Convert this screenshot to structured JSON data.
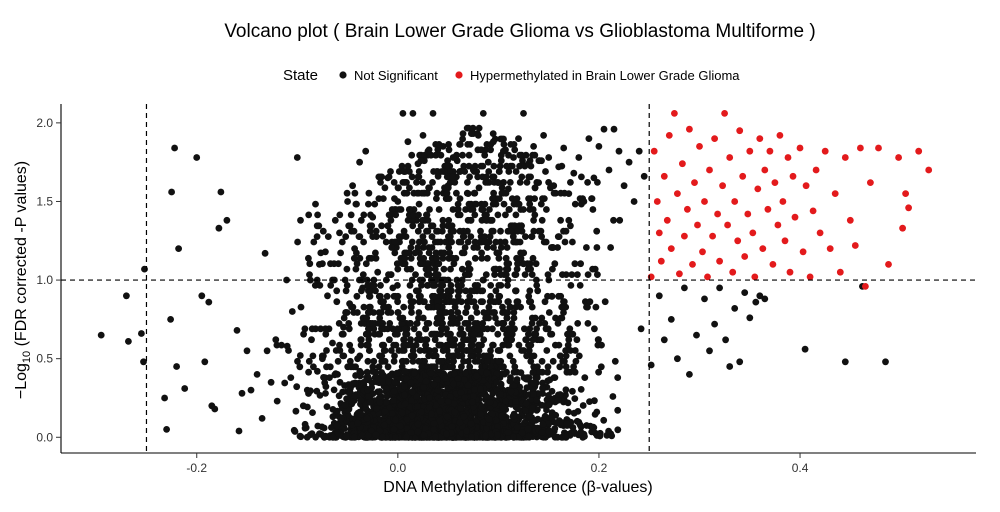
{
  "chart_data": {
    "type": "scatter",
    "title": "Volcano plot ( Brain Lower Grade Glioma vs Glioblastoma Multiforme )",
    "xlabel": "DNA Methylation difference (β-values)",
    "ylabel_prefix": "−Log",
    "ylabel_sub": "10",
    "ylabel_suffix": " (FDR corrected -P values)",
    "xlim": [
      -0.335,
      0.575
    ],
    "ylim": [
      -0.1,
      2.12
    ],
    "x_ticks": [
      -0.2,
      0.0,
      0.2,
      0.4
    ],
    "x_tick_labels": [
      "-0.2",
      "0.0",
      "0.2",
      "0.4"
    ],
    "y_ticks": [
      0.0,
      0.5,
      1.0,
      1.5,
      2.0
    ],
    "y_tick_labels": [
      "0.0",
      "0.5",
      "1.0",
      "1.5",
      "2.0"
    ],
    "grid": false,
    "legend_placement": "top",
    "legend_title": "State",
    "thresholds": {
      "x": [
        -0.25,
        0.25
      ],
      "y": 1.0
    },
    "series": [
      {
        "name": "Not Significant",
        "color": "#111111",
        "description_of_density": "dense cloud around x 0.0-0.15, y 0-0.5; columns thinning up to y 2.0",
        "points": [
          [
            -0.295,
            0.65
          ],
          [
            -0.27,
            0.9
          ],
          [
            -0.268,
            0.61
          ],
          [
            -0.255,
            0.66
          ],
          [
            -0.252,
            1.07
          ],
          [
            -0.253,
            0.48
          ],
          [
            -0.232,
            0.25
          ],
          [
            -0.23,
            0.05
          ],
          [
            -0.226,
            0.75
          ],
          [
            -0.225,
            1.56
          ],
          [
            -0.222,
            1.84
          ],
          [
            -0.22,
            0.45
          ],
          [
            -0.218,
            1.2
          ],
          [
            -0.212,
            0.31
          ],
          [
            -0.2,
            1.78
          ],
          [
            -0.195,
            0.9
          ],
          [
            -0.192,
            0.48
          ],
          [
            -0.188,
            0.86
          ],
          [
            -0.185,
            0.2
          ],
          [
            -0.182,
            0.18
          ],
          [
            -0.178,
            1.33
          ],
          [
            -0.176,
            1.56
          ],
          [
            -0.17,
            1.38
          ],
          [
            -0.16,
            0.68
          ],
          [
            -0.158,
            0.04
          ],
          [
            -0.155,
            0.28
          ],
          [
            -0.15,
            0.55
          ],
          [
            -0.146,
            0.3
          ],
          [
            -0.14,
            0.4
          ],
          [
            -0.135,
            0.12
          ],
          [
            -0.132,
            1.17
          ],
          [
            -0.13,
            0.55
          ],
          [
            -0.126,
            0.35
          ],
          [
            -0.12,
            0.23
          ],
          [
            -0.11,
            0.58
          ],
          [
            -0.105,
            0.8
          ],
          [
            -0.1,
            1.78
          ],
          [
            -0.097,
            0.52
          ],
          [
            -0.094,
            0.2
          ],
          [
            -0.09,
            0.3
          ],
          [
            -0.087,
            1.0
          ],
          [
            -0.08,
            0.42
          ],
          [
            -0.078,
            1.1
          ],
          [
            -0.075,
            0.5
          ],
          [
            -0.072,
            1.18
          ],
          [
            -0.07,
            0.9
          ],
          [
            -0.065,
            0.6
          ],
          [
            -0.06,
            0.4
          ],
          [
            -0.058,
            1.3
          ],
          [
            -0.054,
            0.7
          ],
          [
            -0.05,
            1.5
          ],
          [
            -0.048,
            0.85
          ],
          [
            -0.045,
            1.6
          ],
          [
            -0.043,
            1.2
          ],
          [
            -0.04,
            0.5
          ],
          [
            -0.038,
            1.75
          ],
          [
            -0.035,
            0.95
          ],
          [
            -0.032,
            1.82
          ],
          [
            -0.03,
            0.3
          ],
          [
            -0.025,
            1.4
          ],
          [
            -0.02,
            1.05
          ],
          [
            -0.015,
            1.28
          ],
          [
            -0.01,
            1.65
          ],
          [
            -0.005,
            0.95
          ],
          [
            0.0,
            1.5
          ],
          [
            0.005,
            2.06
          ],
          [
            0.01,
            1.88
          ],
          [
            0.015,
            2.06
          ],
          [
            0.02,
            1.74
          ],
          [
            0.025,
            1.92
          ],
          [
            0.03,
            1.82
          ],
          [
            0.035,
            2.06
          ],
          [
            0.04,
            1.66
          ],
          [
            0.045,
            1.85
          ],
          [
            0.05,
            1.6
          ],
          [
            0.055,
            1.78
          ],
          [
            0.06,
            1.45
          ],
          [
            0.065,
            1.7
          ],
          [
            0.07,
            1.55
          ],
          [
            0.075,
            1.7
          ],
          [
            0.08,
            1.92
          ],
          [
            0.085,
            2.06
          ],
          [
            0.09,
            1.75
          ],
          [
            0.095,
            1.88
          ],
          [
            0.1,
            1.62
          ],
          [
            0.105,
            1.82
          ],
          [
            0.11,
            1.58
          ],
          [
            0.115,
            1.78
          ],
          [
            0.12,
            1.9
          ],
          [
            0.125,
            2.06
          ],
          [
            0.13,
            1.74
          ],
          [
            0.135,
            1.85
          ],
          [
            0.14,
            1.62
          ],
          [
            0.145,
            1.92
          ],
          [
            0.15,
            1.78
          ],
          [
            0.155,
            1.6
          ],
          [
            0.16,
            1.72
          ],
          [
            0.165,
            1.84
          ],
          [
            0.17,
            1.55
          ],
          [
            0.175,
            1.68
          ],
          [
            0.18,
            1.78
          ],
          [
            0.185,
            1.5
          ],
          [
            0.19,
            1.9
          ],
          [
            0.195,
            1.65
          ],
          [
            0.2,
            1.85
          ],
          [
            0.205,
            1.96
          ],
          [
            0.21,
            1.7
          ],
          [
            0.215,
            1.96
          ],
          [
            0.22,
            1.82
          ],
          [
            0.225,
            1.6
          ],
          [
            0.23,
            1.75
          ],
          [
            0.235,
            1.5
          ],
          [
            0.24,
            1.82
          ],
          [
            0.245,
            1.66
          ],
          [
            0.252,
            0.46
          ],
          [
            0.26,
            0.9
          ],
          [
            0.265,
            0.62
          ],
          [
            0.272,
            0.75
          ],
          [
            0.278,
            0.5
          ],
          [
            0.285,
            0.95
          ],
          [
            0.29,
            0.4
          ],
          [
            0.297,
            0.65
          ],
          [
            0.305,
            0.88
          ],
          [
            0.31,
            0.55
          ],
          [
            0.315,
            0.72
          ],
          [
            0.32,
            0.95
          ],
          [
            0.326,
            0.62
          ],
          [
            0.33,
            0.45
          ],
          [
            0.335,
            0.82
          ],
          [
            0.34,
            0.48
          ],
          [
            0.345,
            0.92
          ],
          [
            0.35,
            0.76
          ],
          [
            0.356,
            0.86
          ],
          [
            0.36,
            0.9
          ],
          [
            0.365,
            0.88
          ],
          [
            0.405,
            0.56
          ],
          [
            0.445,
            0.48
          ],
          [
            0.462,
            0.96
          ],
          [
            0.485,
            0.48
          ]
        ]
      },
      {
        "name": "Hypermethylated in Brain Lower Grade Glioma",
        "color": "#e31a1c",
        "points": [
          [
            0.252,
            1.02
          ],
          [
            0.255,
            1.82
          ],
          [
            0.258,
            1.5
          ],
          [
            0.26,
            1.3
          ],
          [
            0.262,
            1.12
          ],
          [
            0.265,
            1.66
          ],
          [
            0.268,
            1.38
          ],
          [
            0.27,
            1.92
          ],
          [
            0.272,
            1.2
          ],
          [
            0.275,
            2.06
          ],
          [
            0.278,
            1.55
          ],
          [
            0.28,
            1.04
          ],
          [
            0.283,
            1.74
          ],
          [
            0.285,
            1.28
          ],
          [
            0.288,
            1.45
          ],
          [
            0.29,
            1.96
          ],
          [
            0.293,
            1.1
          ],
          [
            0.295,
            1.62
          ],
          [
            0.298,
            1.35
          ],
          [
            0.3,
            1.85
          ],
          [
            0.303,
            1.18
          ],
          [
            0.305,
            1.5
          ],
          [
            0.308,
            1.02
          ],
          [
            0.31,
            1.7
          ],
          [
            0.313,
            1.28
          ],
          [
            0.315,
            1.9
          ],
          [
            0.318,
            1.42
          ],
          [
            0.32,
            1.12
          ],
          [
            0.323,
            1.6
          ],
          [
            0.325,
            2.06
          ],
          [
            0.328,
            1.35
          ],
          [
            0.33,
            1.78
          ],
          [
            0.333,
            1.05
          ],
          [
            0.335,
            1.5
          ],
          [
            0.338,
            1.25
          ],
          [
            0.34,
            1.95
          ],
          [
            0.343,
            1.66
          ],
          [
            0.345,
            1.15
          ],
          [
            0.348,
            1.42
          ],
          [
            0.35,
            1.82
          ],
          [
            0.353,
            1.3
          ],
          [
            0.355,
            1.02
          ],
          [
            0.358,
            1.58
          ],
          [
            0.36,
            1.9
          ],
          [
            0.363,
            1.2
          ],
          [
            0.365,
            1.7
          ],
          [
            0.368,
            1.45
          ],
          [
            0.37,
            1.82
          ],
          [
            0.373,
            1.1
          ],
          [
            0.375,
            1.62
          ],
          [
            0.378,
            1.35
          ],
          [
            0.38,
            1.92
          ],
          [
            0.383,
            1.5
          ],
          [
            0.385,
            1.25
          ],
          [
            0.388,
            1.78
          ],
          [
            0.39,
            1.05
          ],
          [
            0.393,
            1.66
          ],
          [
            0.395,
            1.4
          ],
          [
            0.4,
            1.84
          ],
          [
            0.403,
            1.18
          ],
          [
            0.406,
            1.6
          ],
          [
            0.41,
            1.02
          ],
          [
            0.413,
            1.44
          ],
          [
            0.416,
            1.7
          ],
          [
            0.42,
            1.3
          ],
          [
            0.425,
            1.82
          ],
          [
            0.43,
            1.2
          ],
          [
            0.435,
            1.55
          ],
          [
            0.44,
            1.05
          ],
          [
            0.445,
            1.78
          ],
          [
            0.45,
            1.38
          ],
          [
            0.455,
            1.22
          ],
          [
            0.46,
            1.84
          ],
          [
            0.465,
            0.96
          ],
          [
            0.47,
            1.62
          ],
          [
            0.478,
            1.84
          ],
          [
            0.488,
            1.1
          ],
          [
            0.498,
            1.78
          ],
          [
            0.502,
            1.33
          ],
          [
            0.505,
            1.55
          ],
          [
            0.508,
            1.46
          ],
          [
            0.518,
            1.82
          ],
          [
            0.528,
            1.7
          ]
        ]
      }
    ]
  }
}
